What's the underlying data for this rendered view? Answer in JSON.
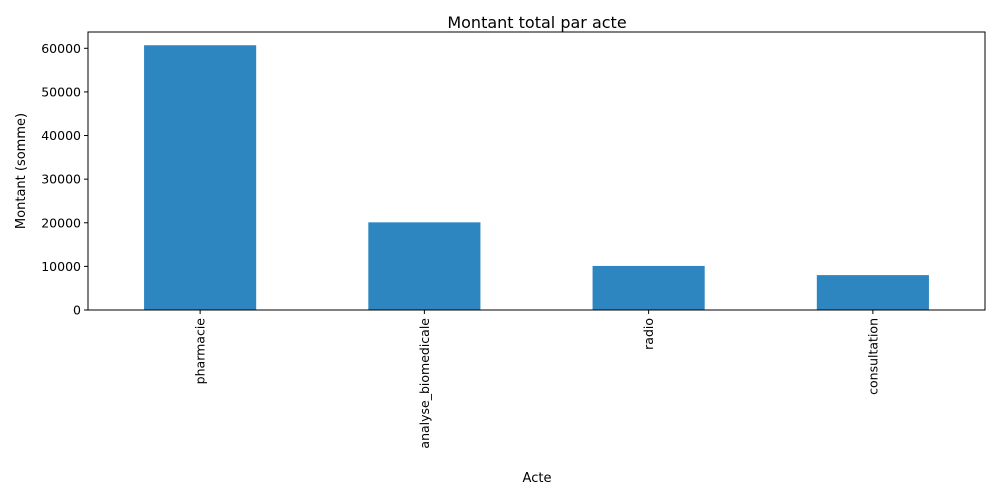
{
  "chart_data": {
    "type": "bar",
    "title": "Montant total par acte",
    "xlabel": "Acte",
    "ylabel": "Montant (somme)",
    "categories": [
      "pharmacie",
      "analyse_biomedicale",
      "radio",
      "consultation"
    ],
    "values": [
      60700,
      20100,
      10100,
      8000
    ],
    "ylim": [
      0,
      63735
    ],
    "yticks": [
      0,
      10000,
      20000,
      30000,
      40000,
      50000,
      60000
    ],
    "grid": false,
    "bar_color": "#2e86c1"
  }
}
